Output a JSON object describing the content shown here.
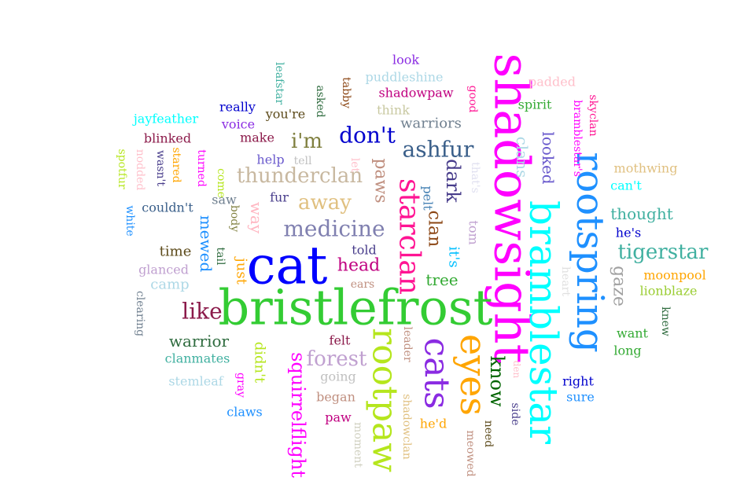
{
  "words": [
    {
      "text": "shadowsight",
      "color": "#ff00ff",
      "rotate": true
    },
    {
      "text": "bristlefrost",
      "color": "#33cc33",
      "rotate": false
    },
    {
      "text": "cat",
      "color": "#0000ff",
      "rotate": false
    },
    {
      "text": "bramblestar",
      "color": "#00ffff",
      "rotate": true
    },
    {
      "text": "rootspring",
      "color": "#1e90ff",
      "rotate": true
    },
    {
      "text": "rootpaw",
      "color": "#b5e61d",
      "rotate": true
    },
    {
      "text": "eyes",
      "color": "#ffa500",
      "rotate": true
    },
    {
      "text": "cats",
      "color": "#8a2be2",
      "rotate": true
    },
    {
      "text": "starclan",
      "color": "#ff1493",
      "rotate": true
    },
    {
      "text": "ashfur",
      "color": "#3a5f8a",
      "rotate": false
    },
    {
      "text": "medicine",
      "color": "#8080b0",
      "rotate": false
    },
    {
      "text": "tigerstar",
      "color": "#40b0a0",
      "rotate": false
    },
    {
      "text": "know",
      "color": "#006400",
      "rotate": true
    },
    {
      "text": "thunderclan",
      "color": "#c8b8a0",
      "rotate": false
    },
    {
      "text": "squirrelflight",
      "color": "#ff00ff",
      "rotate": true
    },
    {
      "text": "forest",
      "color": "#c0a0d0",
      "rotate": false
    },
    {
      "text": "head",
      "color": "#c00080",
      "rotate": false
    },
    {
      "text": "don't",
      "color": "#0000cd",
      "rotate": false
    },
    {
      "text": "i'm",
      "color": "#808040",
      "rotate": false
    },
    {
      "text": "away",
      "color": "#e0c080",
      "rotate": false
    },
    {
      "text": "like",
      "color": "#8b1a4a",
      "rotate": false
    },
    {
      "text": "paws",
      "color": "#c09080",
      "rotate": true
    },
    {
      "text": "dark",
      "color": "#483d8b",
      "rotate": true
    },
    {
      "text": "clan",
      "color": "#8b4513",
      "rotate": true
    },
    {
      "text": "looked",
      "color": "#6a5acd",
      "rotate": true
    },
    {
      "text": "clans",
      "color": "#add8e6",
      "rotate": true
    },
    {
      "text": "gaze",
      "color": "#a0a0a0",
      "rotate": true
    },
    {
      "text": "warrior",
      "color": "#2e6b3e",
      "rotate": false
    },
    {
      "text": "mewed",
      "color": "#1e90ff",
      "rotate": true
    },
    {
      "text": "way",
      "color": "#ffb6c1",
      "rotate": true
    },
    {
      "text": "thought",
      "color": "#40b0a0",
      "rotate": false
    },
    {
      "text": "tree",
      "color": "#33aa33",
      "rotate": false
    },
    {
      "text": "it's",
      "color": "#00bfff",
      "rotate": true
    },
    {
      "text": "warriors",
      "color": "#708090",
      "rotate": false
    },
    {
      "text": "time",
      "color": "#5c4a1a",
      "rotate": false
    },
    {
      "text": "didn't",
      "color": "#b5e61d",
      "rotate": true
    },
    {
      "text": "just",
      "color": "#ffa500",
      "rotate": true
    },
    {
      "text": "pelt",
      "color": "#4682b4",
      "rotate": true
    },
    {
      "text": "felt",
      "color": "#8b1a4a",
      "rotate": false
    },
    {
      "text": "told",
      "color": "#483d8b",
      "rotate": false
    },
    {
      "text": "camp",
      "color": "#add8e6",
      "rotate": false
    },
    {
      "text": "he's",
      "color": "#0000cd",
      "rotate": false
    },
    {
      "text": "right",
      "color": "#0000cd",
      "rotate": false
    },
    {
      "text": "moonpool",
      "color": "#ffa500",
      "rotate": false
    },
    {
      "text": "lionblaze",
      "color": "#9acd32",
      "rotate": false
    },
    {
      "text": "mothwing",
      "color": "#e0c080",
      "rotate": false
    },
    {
      "text": "can't",
      "color": "#00ffff",
      "rotate": false
    },
    {
      "text": "tom",
      "color": "#c0a0d0",
      "rotate": true
    },
    {
      "text": "fur",
      "color": "#483d8b",
      "rotate": false
    },
    {
      "text": "help",
      "color": "#6a5acd",
      "rotate": false
    },
    {
      "text": "saw",
      "color": "#708090",
      "rotate": false
    },
    {
      "text": "body",
      "color": "#808040",
      "rotate": true
    },
    {
      "text": "tail",
      "color": "#2e6b3e",
      "rotate": true
    },
    {
      "text": "come",
      "color": "#b5e61d",
      "rotate": true
    },
    {
      "text": "turned",
      "color": "#ff00ff",
      "rotate": true
    },
    {
      "text": "stared",
      "color": "#ffa500",
      "rotate": true
    },
    {
      "text": "wasn't",
      "color": "#483d8b",
      "rotate": true
    },
    {
      "text": "nodded",
      "color": "#ffc0cb",
      "rotate": true
    },
    {
      "text": "spotfur",
      "color": "#b5e61d",
      "rotate": true
    },
    {
      "text": "white",
      "color": "#1e90ff",
      "rotate": true
    },
    {
      "text": "couldn't",
      "color": "#3a5f8a",
      "rotate": false
    },
    {
      "text": "blinked",
      "color": "#8b1a4a",
      "rotate": false
    },
    {
      "text": "jayfeather",
      "color": "#00ffff",
      "rotate": false
    },
    {
      "text": "make",
      "color": "#8b1a4a",
      "rotate": false
    },
    {
      "text": "voice",
      "color": "#8a2be2",
      "rotate": false
    },
    {
      "text": "really",
      "color": "#0000cd",
      "rotate": false
    },
    {
      "text": "you're",
      "color": "#5c4a1a",
      "rotate": false
    },
    {
      "text": "tell",
      "color": "#c0c0c0",
      "rotate": false
    },
    {
      "text": "asked",
      "color": "#2e6b3e",
      "rotate": true
    },
    {
      "text": "tabby",
      "color": "#8b4513",
      "rotate": true
    },
    {
      "text": "leafstar",
      "color": "#40b0a0",
      "rotate": true
    },
    {
      "text": "look",
      "color": "#8a2be2",
      "rotate": false
    },
    {
      "text": "puddleshine",
      "color": "#add8e6",
      "rotate": false
    },
    {
      "text": "shadowpaw",
      "color": "#c00080",
      "rotate": false
    },
    {
      "text": "think",
      "color": "#c8c8a0",
      "rotate": false
    },
    {
      "text": "good",
      "color": "#ff1493",
      "rotate": true
    },
    {
      "text": "padded",
      "color": "#ffc0cb",
      "rotate": false
    },
    {
      "text": "spirit",
      "color": "#33aa33",
      "rotate": false
    },
    {
      "text": "skyclan",
      "color": "#ff1493",
      "rotate": true
    },
    {
      "text": "bramblestar's",
      "color": "#ff00ff",
      "rotate": true
    },
    {
      "text": "let",
      "color": "#ffc0cb",
      "rotate": true
    },
    {
      "text": "that's",
      "color": "#e0e0f0",
      "rotate": true
    },
    {
      "text": "glanced",
      "color": "#c0a0d0",
      "rotate": false
    },
    {
      "text": "clearing",
      "color": "#708090",
      "rotate": true
    },
    {
      "text": "ears",
      "color": "#c09080",
      "rotate": false
    },
    {
      "text": "heart",
      "color": "#e0e0e0",
      "rotate": true
    },
    {
      "text": "want",
      "color": "#33aa33",
      "rotate": false
    },
    {
      "text": "knew",
      "color": "#2e6b3e",
      "rotate": true
    },
    {
      "text": "long",
      "color": "#33aa33",
      "rotate": false
    },
    {
      "text": "leader",
      "color": "#c09080",
      "rotate": true
    },
    {
      "text": "clanmates",
      "color": "#40b0a0",
      "rotate": false
    },
    {
      "text": "going",
      "color": "#c0c0c0",
      "rotate": false
    },
    {
      "text": "stemleaf",
      "color": "#add8e6",
      "rotate": false
    },
    {
      "text": "gray",
      "color": "#ff00ff",
      "rotate": true
    },
    {
      "text": "began",
      "color": "#c09080",
      "rotate": false
    },
    {
      "text": "claws",
      "color": "#1e90ff",
      "rotate": false
    },
    {
      "text": "paw",
      "color": "#c00080",
      "rotate": false
    },
    {
      "text": "moment",
      "color": "#d0d0c0",
      "rotate": true
    },
    {
      "text": "shadowclan",
      "color": "#e0c080",
      "rotate": true
    },
    {
      "text": "he'd",
      "color": "#ffa500",
      "rotate": false
    },
    {
      "text": "den",
      "color": "#ffc0cb",
      "rotate": true
    },
    {
      "text": "side",
      "color": "#483d8b",
      "rotate": true
    },
    {
      "text": "need",
      "color": "#5c4a1a",
      "rotate": true
    },
    {
      "text": "meowed",
      "color": "#c09080",
      "rotate": true
    },
    {
      "text": "sure",
      "color": "#1e90ff",
      "rotate": false
    }
  ]
}
